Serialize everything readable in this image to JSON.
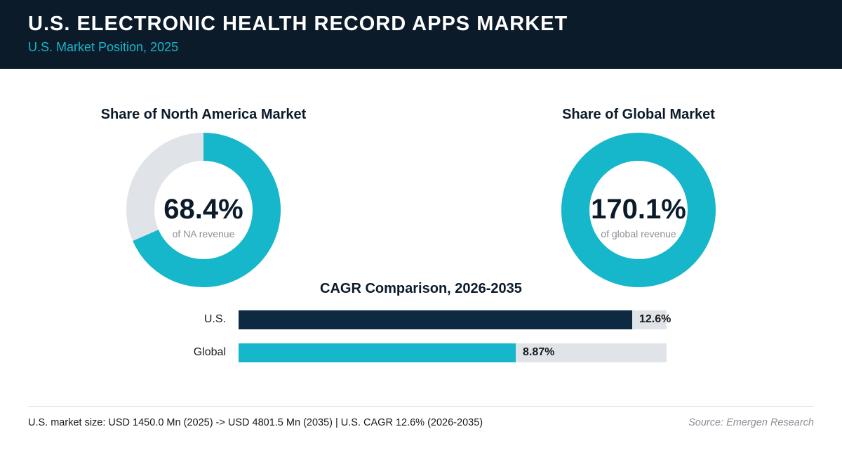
{
  "header": {
    "title": "U.S. ELECTRONIC HEALTH RECORD APPS MARKET",
    "subtitle": "U.S. Market Position, 2025"
  },
  "colors": {
    "header_bg": "#0b1b2a",
    "accent": "#17b7cb",
    "dark_bar": "#0e2a42",
    "track": "#e0e4e9"
  },
  "chart_data": [
    {
      "type": "pie",
      "title": "Share of North America Market",
      "value": 68.4,
      "value_label": "68.4%",
      "center_caption": "of NA revenue"
    },
    {
      "type": "pie",
      "title": "Share of Global Market",
      "value": 170.1,
      "value_label": "170.1%",
      "center_caption": "of global revenue"
    },
    {
      "type": "bar",
      "title": "CAGR Comparison, 2026-2035",
      "categories": [
        "U.S.",
        "Global"
      ],
      "values": [
        12.6,
        8.87
      ],
      "value_labels": [
        "12.6%",
        "8.87%"
      ],
      "xlim": [
        0,
        13.7
      ],
      "bar_colors": [
        "#0e2a42",
        "#17b7cb"
      ]
    }
  ],
  "footer": {
    "note": "U.S. market size: USD 1450.0 Mn (2025) -> USD 4801.5 Mn (2035)  |  U.S. CAGR 12.6% (2026-2035)",
    "source": "Source: Emergen Research"
  }
}
